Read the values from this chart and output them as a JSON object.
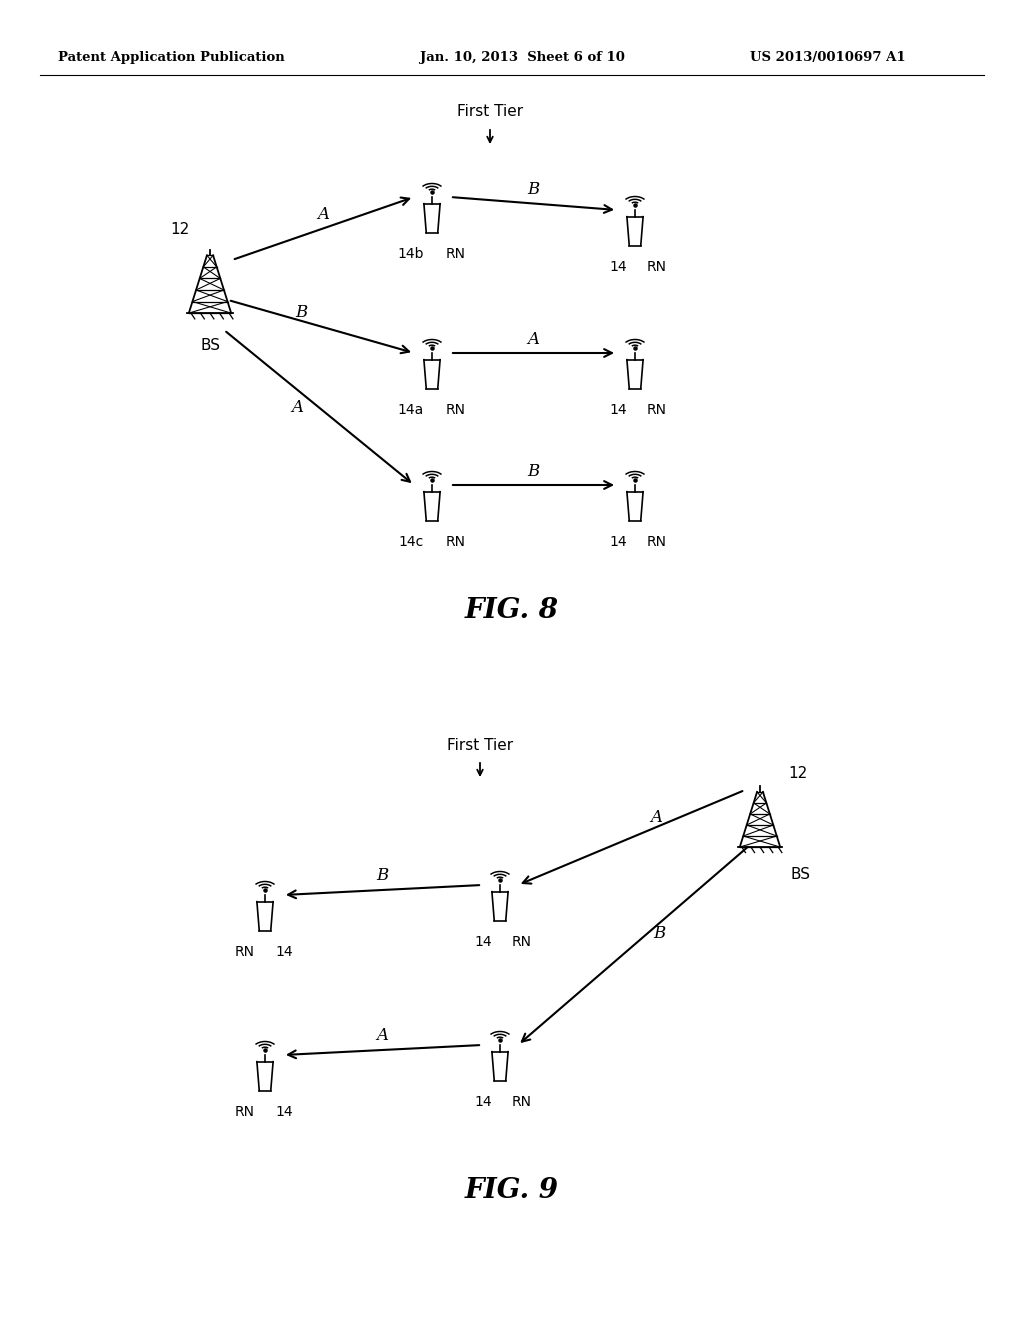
{
  "bg_color": "#ffffff",
  "text_color": "#000000",
  "header_left": "Patent Application Publication",
  "header_center": "Jan. 10, 2013  Sheet 6 of 10",
  "header_right": "US 2013/0010697 A1",
  "fig8_label": "FIG. 8",
  "fig9_label": "FIG. 9",
  "fig8_first_tier_label": "First Tier",
  "fig9_first_tier_label": "First Tier"
}
